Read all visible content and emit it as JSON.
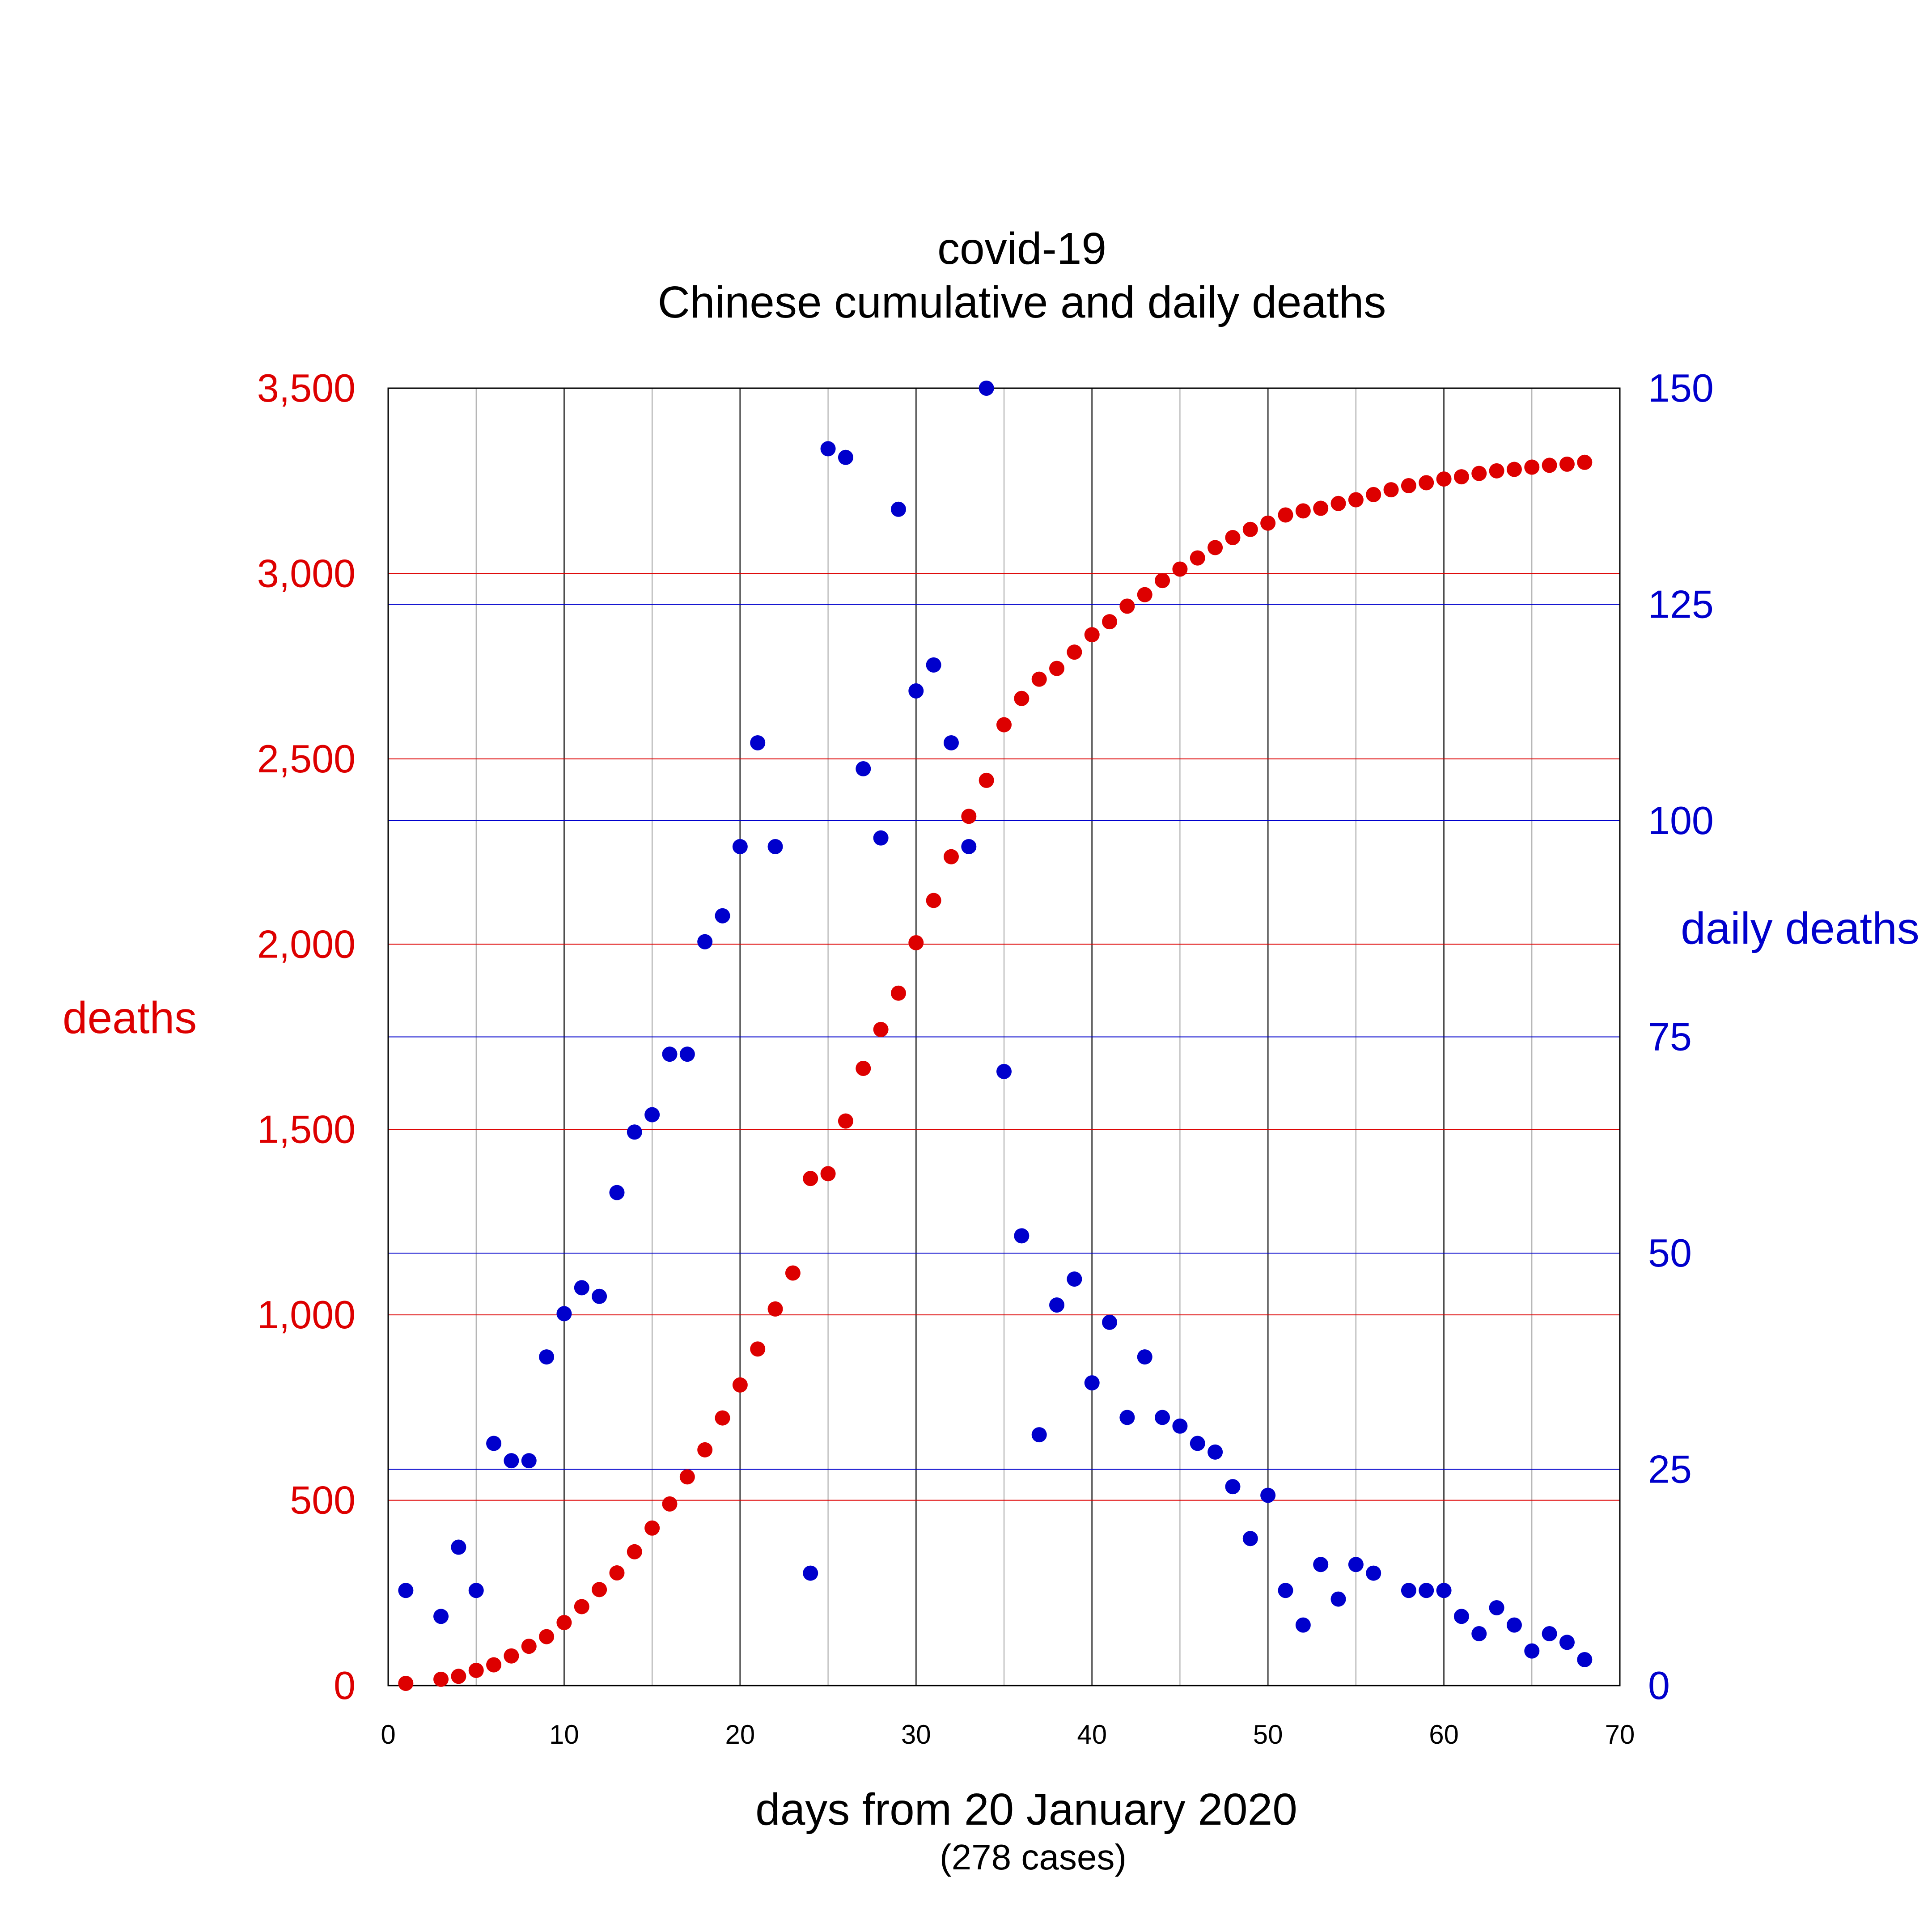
{
  "chart_data": {
    "type": "scatter",
    "title": "covid-19",
    "subtitle": "Chinese cumulative and daily deaths",
    "xlabel": "days from 20 January 2020",
    "xlabel_note": "(278 cases)",
    "ylabel_left": "deaths",
    "ylabel_right": "daily deaths",
    "xlim": [
      0,
      70
    ],
    "ylim_left": [
      0,
      3500
    ],
    "ylim_right": [
      0,
      150
    ],
    "x_ticks": [
      "0",
      "10",
      "20",
      "30",
      "40",
      "50",
      "60",
      "70"
    ],
    "y_left_ticks": [
      "0",
      "500",
      "1,000",
      "1,500",
      "2,000",
      "2,500",
      "3,000",
      "3,500"
    ],
    "y_right_ticks": [
      "0",
      "25",
      "50",
      "75",
      "100",
      "125",
      "150"
    ],
    "grid": true,
    "colors": {
      "cumulative": "#dd0000",
      "daily": "#0000cc"
    },
    "series": [
      {
        "axis": "left",
        "x": [
          1,
          3,
          4,
          5,
          6,
          7,
          8,
          9,
          10,
          11,
          12,
          13,
          14,
          15,
          16,
          17,
          18,
          19,
          20,
          21,
          22,
          23,
          24,
          25,
          26,
          27,
          28,
          29,
          30,
          31,
          32,
          33,
          34,
          35,
          36,
          37,
          38,
          39,
          40,
          41,
          42,
          43,
          44,
          45,
          46,
          47,
          48,
          49,
          50,
          51,
          52,
          53,
          54,
          55,
          56,
          57,
          58,
          59,
          60,
          61,
          62,
          63,
          64,
          65,
          66,
          67,
          68
        ],
        "y": [
          6,
          17,
          25,
          41,
          56,
          80,
          106,
          132,
          170,
          213,
          259,
          304,
          361,
          425,
          490,
          563,
          636,
          722,
          811,
          908,
          1016,
          1113,
          1368,
          1381,
          1523,
          1665,
          1770,
          1868,
          2004,
          2118,
          2236,
          2345,
          2442,
          2592,
          2663,
          2715,
          2744,
          2788,
          2835,
          2870,
          2912,
          2943,
          2981,
          3012,
          3042,
          3070,
          3097,
          3119,
          3136,
          3158,
          3169,
          3176,
          3189,
          3199,
          3213,
          3226,
          3237,
          3245,
          3255,
          3261,
          3270,
          3277,
          3281,
          3287,
          3292,
          3295,
          3300
        ]
      },
      {
        "axis": "right",
        "x": [
          1,
          3,
          4,
          5,
          6,
          7,
          8,
          9,
          10,
          11,
          12,
          13,
          14,
          15,
          16,
          17,
          18,
          19,
          20,
          21,
          22,
          23,
          24,
          25,
          26,
          27,
          28,
          29,
          30,
          31,
          32,
          33,
          34,
          35,
          36,
          37,
          38,
          39,
          40,
          41,
          42,
          43,
          44,
          45,
          46,
          47,
          48,
          49,
          50,
          51,
          52,
          53,
          54,
          55,
          56,
          57,
          58,
          59,
          60,
          61,
          62,
          63,
          64,
          65,
          66,
          67,
          68
        ],
        "y": [
          11,
          8,
          16,
          11,
          28,
          26,
          26,
          38,
          43,
          46,
          45,
          57,
          64,
          66,
          73,
          73,
          86,
          89,
          97,
          109,
          97,
          null,
          13,
          143,
          142,
          106,
          98,
          136,
          115,
          118,
          109,
          97,
          150,
          71,
          52,
          29,
          44,
          47,
          35,
          42,
          31,
          38,
          31,
          30,
          28,
          27,
          23,
          17,
          22,
          11,
          7,
          14,
          10,
          14,
          13,
          null,
          11,
          11,
          11,
          8,
          6,
          9,
          7,
          4,
          6,
          5,
          3
        ]
      }
    ]
  }
}
